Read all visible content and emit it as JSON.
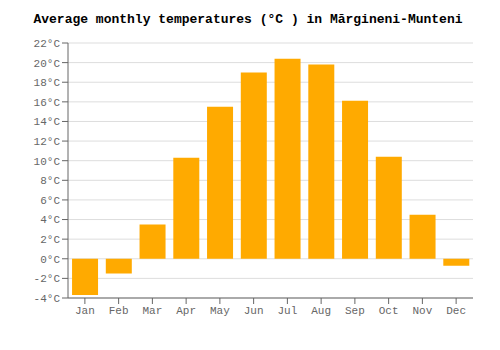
{
  "chart_data": {
    "type": "bar",
    "title": "Average monthly temperatures (°C ) in Mărgineni-Munteni",
    "categories": [
      "Jan",
      "Feb",
      "Mar",
      "Apr",
      "May",
      "Jun",
      "Jul",
      "Aug",
      "Sep",
      "Oct",
      "Nov",
      "Dec"
    ],
    "values": [
      -3.7,
      -1.5,
      3.5,
      10.3,
      15.5,
      19.0,
      20.4,
      19.8,
      16.1,
      10.4,
      4.5,
      -0.7
    ],
    "color": "#FFAA00",
    "ylim": [
      -4,
      22
    ],
    "yticks": [
      {
        "value": -4,
        "label": "-4°C"
      },
      {
        "value": -2,
        "label": "-2°C"
      },
      {
        "value": 0,
        "label": "0°C"
      },
      {
        "value": 2,
        "label": "2°C"
      },
      {
        "value": 4,
        "label": "4°C"
      },
      {
        "value": 6,
        "label": "6°C"
      },
      {
        "value": 8,
        "label": "8°C"
      },
      {
        "value": 10,
        "label": "10°C"
      },
      {
        "value": 12,
        "label": "12°C"
      },
      {
        "value": 14,
        "label": "14°C"
      },
      {
        "value": 16,
        "label": "16°C"
      },
      {
        "value": 18,
        "label": "18°C"
      },
      {
        "value": 20,
        "label": "20°C"
      },
      {
        "value": 22,
        "label": "22°C"
      }
    ],
    "grid": true
  }
}
